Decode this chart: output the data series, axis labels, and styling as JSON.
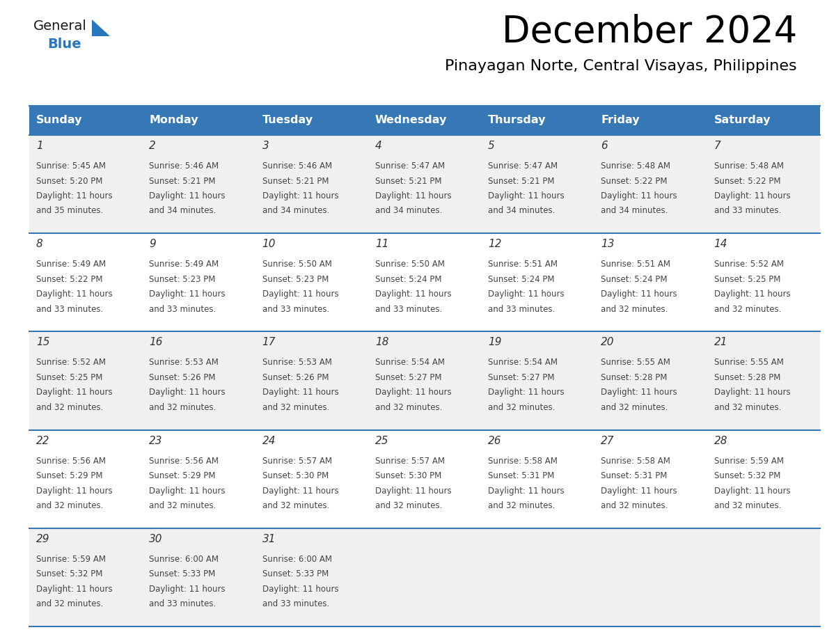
{
  "title": "December 2024",
  "subtitle": "Pinayagan Norte, Central Visayas, Philippines",
  "days_of_week": [
    "Sunday",
    "Monday",
    "Tuesday",
    "Wednesday",
    "Thursday",
    "Friday",
    "Saturday"
  ],
  "header_bg": "#3578b5",
  "header_text": "#ffffff",
  "row_bg_odd": "#f0f0f0",
  "row_bg_even": "#ffffff",
  "cell_text_color": "#444444",
  "day_num_color": "#333333",
  "divider_color": "#3578b5",
  "logo_general_color": "#1a1a1a",
  "logo_blue_color": "#2878c0",
  "calendar_data": [
    [
      {
        "day": 1,
        "sunrise": "5:45 AM",
        "sunset": "5:20 PM",
        "daylight_line1": "Daylight: 11 hours",
        "daylight_line2": "and 35 minutes."
      },
      {
        "day": 2,
        "sunrise": "5:46 AM",
        "sunset": "5:21 PM",
        "daylight_line1": "Daylight: 11 hours",
        "daylight_line2": "and 34 minutes."
      },
      {
        "day": 3,
        "sunrise": "5:46 AM",
        "sunset": "5:21 PM",
        "daylight_line1": "Daylight: 11 hours",
        "daylight_line2": "and 34 minutes."
      },
      {
        "day": 4,
        "sunrise": "5:47 AM",
        "sunset": "5:21 PM",
        "daylight_line1": "Daylight: 11 hours",
        "daylight_line2": "and 34 minutes."
      },
      {
        "day": 5,
        "sunrise": "5:47 AM",
        "sunset": "5:21 PM",
        "daylight_line1": "Daylight: 11 hours",
        "daylight_line2": "and 34 minutes."
      },
      {
        "day": 6,
        "sunrise": "5:48 AM",
        "sunset": "5:22 PM",
        "daylight_line1": "Daylight: 11 hours",
        "daylight_line2": "and 34 minutes."
      },
      {
        "day": 7,
        "sunrise": "5:48 AM",
        "sunset": "5:22 PM",
        "daylight_line1": "Daylight: 11 hours",
        "daylight_line2": "and 33 minutes."
      }
    ],
    [
      {
        "day": 8,
        "sunrise": "5:49 AM",
        "sunset": "5:22 PM",
        "daylight_line1": "Daylight: 11 hours",
        "daylight_line2": "and 33 minutes."
      },
      {
        "day": 9,
        "sunrise": "5:49 AM",
        "sunset": "5:23 PM",
        "daylight_line1": "Daylight: 11 hours",
        "daylight_line2": "and 33 minutes."
      },
      {
        "day": 10,
        "sunrise": "5:50 AM",
        "sunset": "5:23 PM",
        "daylight_line1": "Daylight: 11 hours",
        "daylight_line2": "and 33 minutes."
      },
      {
        "day": 11,
        "sunrise": "5:50 AM",
        "sunset": "5:24 PM",
        "daylight_line1": "Daylight: 11 hours",
        "daylight_line2": "and 33 minutes."
      },
      {
        "day": 12,
        "sunrise": "5:51 AM",
        "sunset": "5:24 PM",
        "daylight_line1": "Daylight: 11 hours",
        "daylight_line2": "and 33 minutes."
      },
      {
        "day": 13,
        "sunrise": "5:51 AM",
        "sunset": "5:24 PM",
        "daylight_line1": "Daylight: 11 hours",
        "daylight_line2": "and 32 minutes."
      },
      {
        "day": 14,
        "sunrise": "5:52 AM",
        "sunset": "5:25 PM",
        "daylight_line1": "Daylight: 11 hours",
        "daylight_line2": "and 32 minutes."
      }
    ],
    [
      {
        "day": 15,
        "sunrise": "5:52 AM",
        "sunset": "5:25 PM",
        "daylight_line1": "Daylight: 11 hours",
        "daylight_line2": "and 32 minutes."
      },
      {
        "day": 16,
        "sunrise": "5:53 AM",
        "sunset": "5:26 PM",
        "daylight_line1": "Daylight: 11 hours",
        "daylight_line2": "and 32 minutes."
      },
      {
        "day": 17,
        "sunrise": "5:53 AM",
        "sunset": "5:26 PM",
        "daylight_line1": "Daylight: 11 hours",
        "daylight_line2": "and 32 minutes."
      },
      {
        "day": 18,
        "sunrise": "5:54 AM",
        "sunset": "5:27 PM",
        "daylight_line1": "Daylight: 11 hours",
        "daylight_line2": "and 32 minutes."
      },
      {
        "day": 19,
        "sunrise": "5:54 AM",
        "sunset": "5:27 PM",
        "daylight_line1": "Daylight: 11 hours",
        "daylight_line2": "and 32 minutes."
      },
      {
        "day": 20,
        "sunrise": "5:55 AM",
        "sunset": "5:28 PM",
        "daylight_line1": "Daylight: 11 hours",
        "daylight_line2": "and 32 minutes."
      },
      {
        "day": 21,
        "sunrise": "5:55 AM",
        "sunset": "5:28 PM",
        "daylight_line1": "Daylight: 11 hours",
        "daylight_line2": "and 32 minutes."
      }
    ],
    [
      {
        "day": 22,
        "sunrise": "5:56 AM",
        "sunset": "5:29 PM",
        "daylight_line1": "Daylight: 11 hours",
        "daylight_line2": "and 32 minutes."
      },
      {
        "day": 23,
        "sunrise": "5:56 AM",
        "sunset": "5:29 PM",
        "daylight_line1": "Daylight: 11 hours",
        "daylight_line2": "and 32 minutes."
      },
      {
        "day": 24,
        "sunrise": "5:57 AM",
        "sunset": "5:30 PM",
        "daylight_line1": "Daylight: 11 hours",
        "daylight_line2": "and 32 minutes."
      },
      {
        "day": 25,
        "sunrise": "5:57 AM",
        "sunset": "5:30 PM",
        "daylight_line1": "Daylight: 11 hours",
        "daylight_line2": "and 32 minutes."
      },
      {
        "day": 26,
        "sunrise": "5:58 AM",
        "sunset": "5:31 PM",
        "daylight_line1": "Daylight: 11 hours",
        "daylight_line2": "and 32 minutes."
      },
      {
        "day": 27,
        "sunrise": "5:58 AM",
        "sunset": "5:31 PM",
        "daylight_line1": "Daylight: 11 hours",
        "daylight_line2": "and 32 minutes."
      },
      {
        "day": 28,
        "sunrise": "5:59 AM",
        "sunset": "5:32 PM",
        "daylight_line1": "Daylight: 11 hours",
        "daylight_line2": "and 32 minutes."
      }
    ],
    [
      {
        "day": 29,
        "sunrise": "5:59 AM",
        "sunset": "5:32 PM",
        "daylight_line1": "Daylight: 11 hours",
        "daylight_line2": "and 32 minutes."
      },
      {
        "day": 30,
        "sunrise": "6:00 AM",
        "sunset": "5:33 PM",
        "daylight_line1": "Daylight: 11 hours",
        "daylight_line2": "and 33 minutes."
      },
      {
        "day": 31,
        "sunrise": "6:00 AM",
        "sunset": "5:33 PM",
        "daylight_line1": "Daylight: 11 hours",
        "daylight_line2": "and 33 minutes."
      },
      null,
      null,
      null,
      null
    ]
  ]
}
